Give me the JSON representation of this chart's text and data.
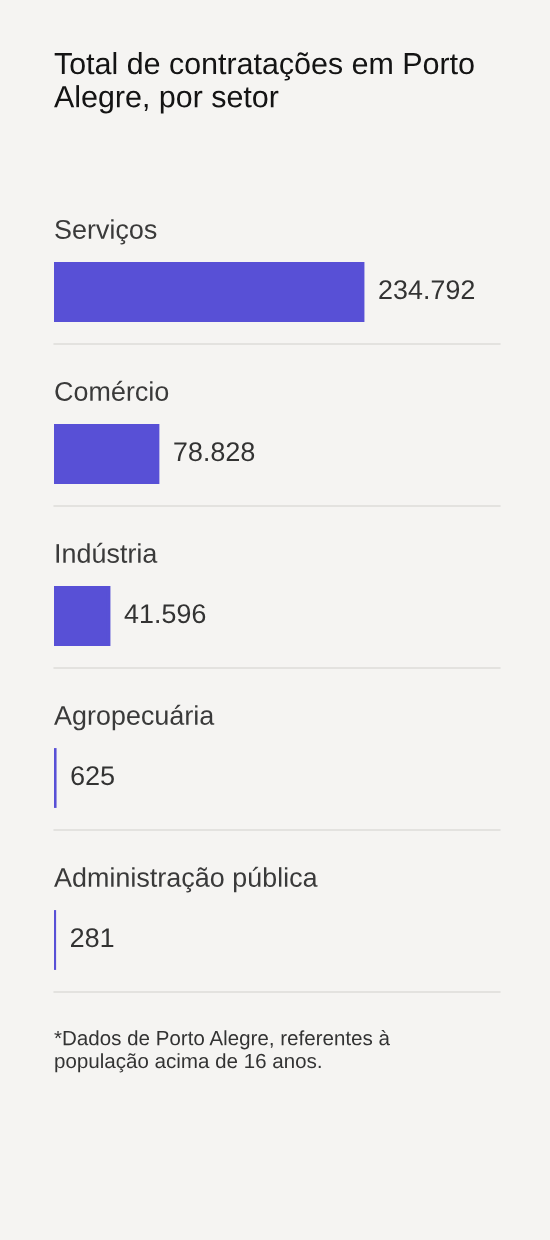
{
  "chart_data": {
    "type": "bar",
    "orientation": "horizontal",
    "title": "Total de contratações em Porto Alegre, por setor",
    "categories": [
      "Serviços",
      "Comércio",
      "Indústria",
      "Agropecuária",
      "Administração pública"
    ],
    "values": [
      234792,
      78828,
      41596,
      625,
      281
    ],
    "value_labels": [
      "234.792",
      "78.828",
      "41.596",
      "625",
      "281"
    ],
    "color": "#5850d6",
    "tick_labels": "y",
    "annotations": [
      "*Dados de Porto Alegre, referentes à população acima de 16 anos."
    ]
  }
}
